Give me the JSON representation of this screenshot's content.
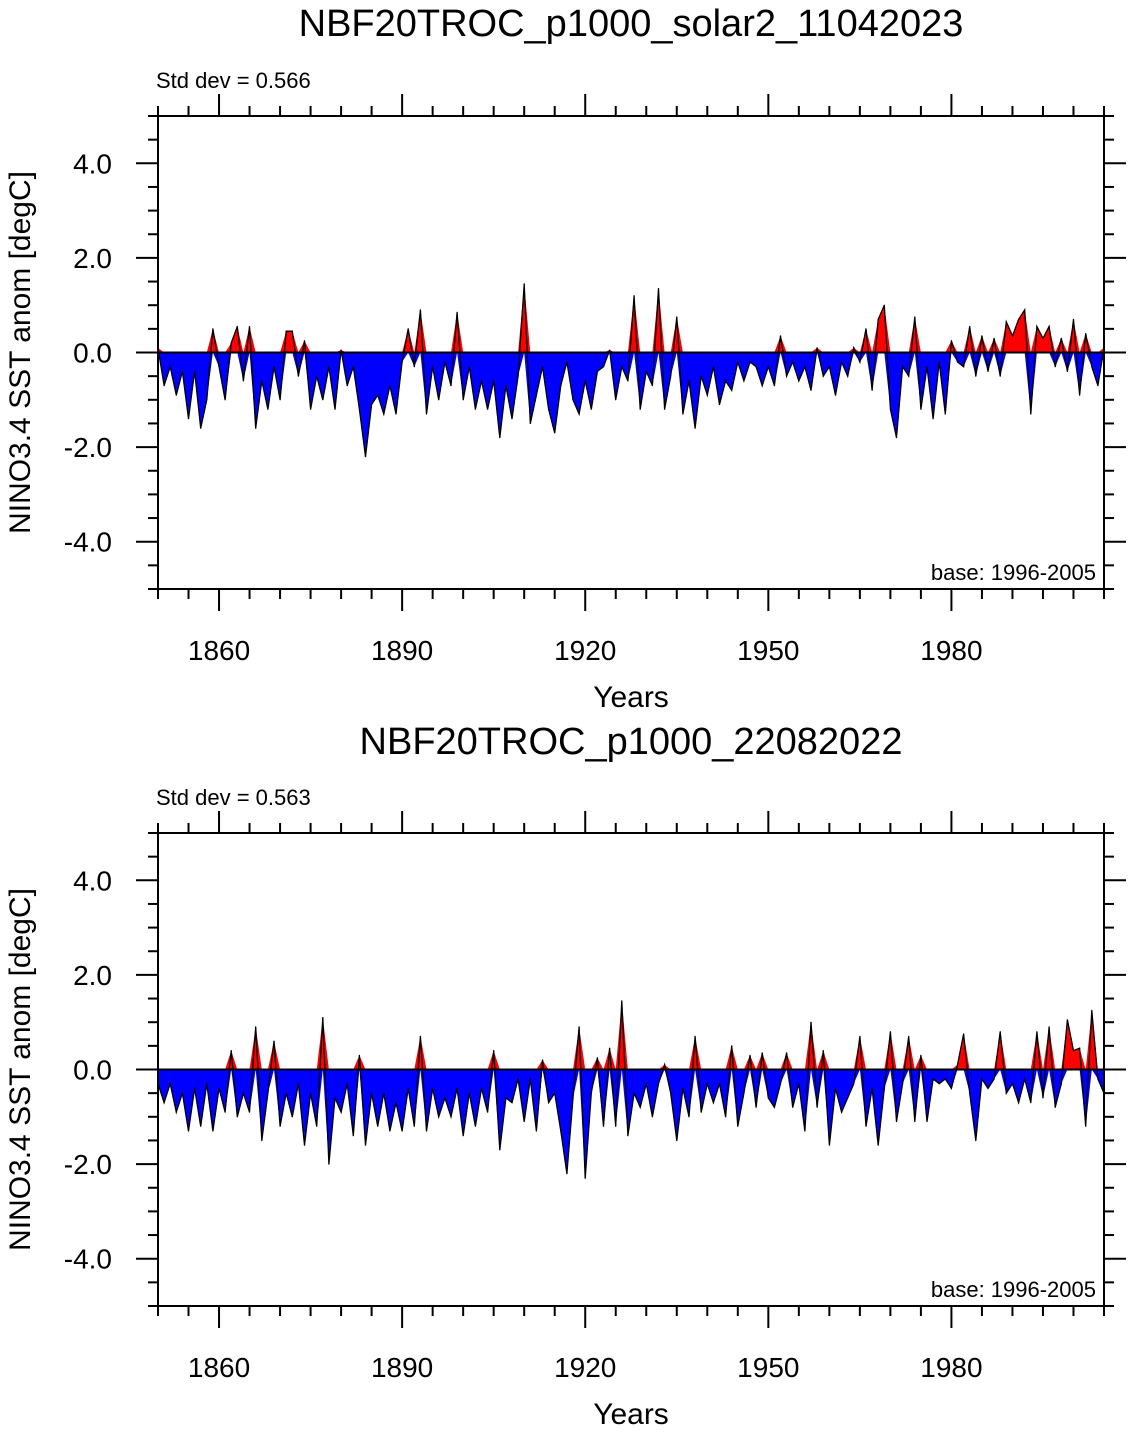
{
  "colors": {
    "positive": "#ff0000",
    "negative": "#0000ff",
    "line": "#000000",
    "background": "#ffffff"
  },
  "chart_data": [
    {
      "type": "area",
      "title": "NBF20TROC_p1000_solar2_11042023",
      "stddev_label": "Std dev = 0.566",
      "base_label": "base: 1996-2005",
      "xlabel": "Years",
      "ylabel": "NINO3.4 SST anom [degC]",
      "xlim": [
        1850,
        2005
      ],
      "ylim": [
        -5,
        5
      ],
      "x_ticks": [
        1860,
        1890,
        1920,
        1950,
        1980
      ],
      "x_tick_labels": [
        "1860",
        "1890",
        "1920",
        "1950",
        "1980"
      ],
      "y_ticks": [
        4,
        2,
        0,
        -2,
        -4
      ],
      "y_tick_labels": [
        "4.0",
        "2.0",
        "0.0",
        "-2.0",
        "-4.0"
      ],
      "baseline": 0,
      "points": [
        [
          1850,
          0.1
        ],
        [
          1851,
          -0.7
        ],
        [
          1852,
          -0.3
        ],
        [
          1853,
          -0.9
        ],
        [
          1854,
          -0.4
        ],
        [
          1855,
          -1.4
        ],
        [
          1856,
          -0.4
        ],
        [
          1857,
          -1.6
        ],
        [
          1858,
          -1.0
        ],
        [
          1859,
          0.5
        ],
        [
          1860,
          -0.3
        ],
        [
          1861,
          -1.0
        ],
        [
          1862,
          0.2
        ],
        [
          1863,
          0.55
        ],
        [
          1864,
          -0.6
        ],
        [
          1865,
          0.55
        ],
        [
          1866,
          -1.6
        ],
        [
          1867,
          -0.6
        ],
        [
          1868,
          -1.2
        ],
        [
          1869,
          -0.3
        ],
        [
          1870,
          -1.0
        ],
        [
          1871,
          0.45
        ],
        [
          1872,
          0.45
        ],
        [
          1873,
          -0.5
        ],
        [
          1874,
          0.25
        ],
        [
          1875,
          -1.2
        ],
        [
          1876,
          -0.5
        ],
        [
          1877,
          -1.0
        ],
        [
          1878,
          -0.3
        ],
        [
          1879,
          -1.2
        ],
        [
          1880,
          0.05
        ],
        [
          1881,
          -0.7
        ],
        [
          1882,
          -0.3
        ],
        [
          1883,
          -1.2
        ],
        [
          1884,
          -2.2
        ],
        [
          1885,
          -1.1
        ],
        [
          1886,
          -0.9
        ],
        [
          1887,
          -1.3
        ],
        [
          1888,
          -0.7
        ],
        [
          1889,
          -1.3
        ],
        [
          1890,
          -0.2
        ],
        [
          1891,
          0.5
        ],
        [
          1892,
          -0.3
        ],
        [
          1893,
          0.9
        ],
        [
          1894,
          -1.3
        ],
        [
          1895,
          -0.3
        ],
        [
          1896,
          -1.0
        ],
        [
          1897,
          -0.2
        ],
        [
          1898,
          -0.7
        ],
        [
          1899,
          0.85
        ],
        [
          1900,
          -1.0
        ],
        [
          1901,
          -0.3
        ],
        [
          1902,
          -1.2
        ],
        [
          1903,
          -0.6
        ],
        [
          1904,
          -1.2
        ],
        [
          1905,
          -0.6
        ],
        [
          1906,
          -1.8
        ],
        [
          1907,
          -0.7
        ],
        [
          1908,
          -1.4
        ],
        [
          1909,
          -0.5
        ],
        [
          1910,
          1.45
        ],
        [
          1911,
          -1.5
        ],
        [
          1912,
          -0.9
        ],
        [
          1913,
          -0.3
        ],
        [
          1914,
          -1.2
        ],
        [
          1915,
          -1.7
        ],
        [
          1916,
          -0.7
        ],
        [
          1917,
          -0.2
        ],
        [
          1918,
          -1.0
        ],
        [
          1919,
          -1.3
        ],
        [
          1920,
          -0.6
        ],
        [
          1921,
          -1.2
        ],
        [
          1922,
          -0.4
        ],
        [
          1923,
          -0.3
        ],
        [
          1924,
          0.05
        ],
        [
          1925,
          -1.0
        ],
        [
          1926,
          -0.3
        ],
        [
          1927,
          -0.6
        ],
        [
          1928,
          1.2
        ],
        [
          1929,
          -1.2
        ],
        [
          1930,
          -0.4
        ],
        [
          1931,
          -0.7
        ],
        [
          1932,
          1.35
        ],
        [
          1933,
          -1.2
        ],
        [
          1934,
          -0.5
        ],
        [
          1935,
          0.75
        ],
        [
          1936,
          -1.3
        ],
        [
          1937,
          -0.6
        ],
        [
          1938,
          -1.6
        ],
        [
          1939,
          -0.5
        ],
        [
          1940,
          -0.9
        ],
        [
          1941,
          -0.3
        ],
        [
          1942,
          -1.1
        ],
        [
          1943,
          -0.6
        ],
        [
          1944,
          -0.8
        ],
        [
          1945,
          -0.2
        ],
        [
          1946,
          -0.6
        ],
        [
          1947,
          -0.2
        ],
        [
          1948,
          -0.3
        ],
        [
          1949,
          -0.7
        ],
        [
          1950,
          -0.3
        ],
        [
          1951,
          -0.7
        ],
        [
          1952,
          0.35
        ],
        [
          1953,
          -0.5
        ],
        [
          1954,
          -0.2
        ],
        [
          1955,
          -0.6
        ],
        [
          1956,
          -0.3
        ],
        [
          1957,
          -0.8
        ],
        [
          1958,
          0.1
        ],
        [
          1959,
          -0.5
        ],
        [
          1960,
          -0.3
        ],
        [
          1961,
          -0.9
        ],
        [
          1962,
          -0.2
        ],
        [
          1963,
          -0.5
        ],
        [
          1964,
          0.1
        ],
        [
          1965,
          -0.2
        ],
        [
          1966,
          0.5
        ],
        [
          1967,
          -0.8
        ],
        [
          1968,
          0.7
        ],
        [
          1969,
          1.0
        ],
        [
          1970,
          -1.2
        ],
        [
          1971,
          -1.8
        ],
        [
          1972,
          -0.3
        ],
        [
          1973,
          -0.5
        ],
        [
          1974,
          0.75
        ],
        [
          1975,
          -1.2
        ],
        [
          1976,
          -0.3
        ],
        [
          1977,
          -1.4
        ],
        [
          1978,
          -0.2
        ],
        [
          1979,
          -1.3
        ],
        [
          1980,
          0.25
        ],
        [
          1981,
          -0.2
        ],
        [
          1982,
          -0.3
        ],
        [
          1983,
          0.55
        ],
        [
          1984,
          -0.5
        ],
        [
          1985,
          0.35
        ],
        [
          1986,
          -0.4
        ],
        [
          1987,
          0.3
        ],
        [
          1988,
          -0.5
        ],
        [
          1989,
          0.65
        ],
        [
          1990,
          0.35
        ],
        [
          1991,
          0.7
        ],
        [
          1992,
          0.9
        ],
        [
          1993,
          -1.3
        ],
        [
          1994,
          0.55
        ],
        [
          1995,
          0.3
        ],
        [
          1996,
          0.55
        ],
        [
          1997,
          -0.3
        ],
        [
          1998,
          0.3
        ],
        [
          1999,
          -0.4
        ],
        [
          2000,
          0.7
        ],
        [
          2001,
          -0.9
        ],
        [
          2002,
          0.4
        ],
        [
          2003,
          -0.3
        ],
        [
          2004,
          -0.7
        ],
        [
          2005,
          0.1
        ]
      ]
    },
    {
      "type": "area",
      "title": "NBF20TROC_p1000_22082022",
      "stddev_label": "Std dev = 0.563",
      "base_label": "base: 1996-2005",
      "xlabel": "Years",
      "ylabel": "NINO3.4 SST anom [degC]",
      "xlim": [
        1850,
        2005
      ],
      "ylim": [
        -5,
        5
      ],
      "x_ticks": [
        1860,
        1890,
        1920,
        1950,
        1980
      ],
      "x_tick_labels": [
        "1860",
        "1890",
        "1920",
        "1950",
        "1980"
      ],
      "y_ticks": [
        4,
        2,
        0,
        -2,
        -4
      ],
      "y_tick_labels": [
        "4.0",
        "2.0",
        "0.0",
        "-2.0",
        "-4.0"
      ],
      "baseline": 0,
      "points": [
        [
          1850,
          -0.3
        ],
        [
          1851,
          -0.7
        ],
        [
          1852,
          -0.3
        ],
        [
          1853,
          -0.9
        ],
        [
          1854,
          -0.5
        ],
        [
          1855,
          -1.3
        ],
        [
          1856,
          -0.4
        ],
        [
          1857,
          -1.2
        ],
        [
          1858,
          -0.3
        ],
        [
          1859,
          -1.3
        ],
        [
          1860,
          -0.4
        ],
        [
          1861,
          -0.9
        ],
        [
          1862,
          0.4
        ],
        [
          1863,
          -1.0
        ],
        [
          1864,
          -0.5
        ],
        [
          1865,
          -0.9
        ],
        [
          1866,
          0.9
        ],
        [
          1867,
          -1.5
        ],
        [
          1868,
          -0.5
        ],
        [
          1869,
          0.6
        ],
        [
          1870,
          -1.2
        ],
        [
          1871,
          -0.5
        ],
        [
          1872,
          -1.0
        ],
        [
          1873,
          -0.3
        ],
        [
          1874,
          -1.6
        ],
        [
          1875,
          -0.5
        ],
        [
          1876,
          -1.2
        ],
        [
          1877,
          1.1
        ],
        [
          1878,
          -2.0
        ],
        [
          1879,
          -0.6
        ],
        [
          1880,
          -0.9
        ],
        [
          1881,
          -0.3
        ],
        [
          1882,
          -1.4
        ],
        [
          1883,
          0.3
        ],
        [
          1884,
          -1.6
        ],
        [
          1885,
          -0.5
        ],
        [
          1886,
          -1.2
        ],
        [
          1887,
          -0.5
        ],
        [
          1888,
          -1.3
        ],
        [
          1889,
          -0.7
        ],
        [
          1890,
          -1.3
        ],
        [
          1891,
          -0.4
        ],
        [
          1892,
          -1.2
        ],
        [
          1893,
          0.7
        ],
        [
          1894,
          -1.3
        ],
        [
          1895,
          -0.4
        ],
        [
          1896,
          -1.0
        ],
        [
          1897,
          -0.6
        ],
        [
          1898,
          -1.0
        ],
        [
          1899,
          -0.4
        ],
        [
          1900,
          -1.4
        ],
        [
          1901,
          -0.5
        ],
        [
          1902,
          -1.2
        ],
        [
          1903,
          -0.4
        ],
        [
          1904,
          -0.9
        ],
        [
          1905,
          0.4
        ],
        [
          1906,
          -1.7
        ],
        [
          1907,
          -0.6
        ],
        [
          1908,
          -0.7
        ],
        [
          1909,
          -0.2
        ],
        [
          1910,
          -1.1
        ],
        [
          1911,
          -0.2
        ],
        [
          1912,
          -1.3
        ],
        [
          1913,
          0.2
        ],
        [
          1914,
          -0.7
        ],
        [
          1915,
          -0.5
        ],
        [
          1916,
          -1.3
        ],
        [
          1917,
          -2.2
        ],
        [
          1918,
          -0.6
        ],
        [
          1919,
          0.9
        ],
        [
          1920,
          -2.3
        ],
        [
          1921,
          -0.5
        ],
        [
          1922,
          0.25
        ],
        [
          1923,
          -1.2
        ],
        [
          1924,
          0.45
        ],
        [
          1925,
          -1.2
        ],
        [
          1926,
          1.45
        ],
        [
          1927,
          -1.4
        ],
        [
          1928,
          -0.5
        ],
        [
          1929,
          -0.8
        ],
        [
          1930,
          -0.3
        ],
        [
          1931,
          -1.0
        ],
        [
          1932,
          -0.3
        ],
        [
          1933,
          0.1
        ],
        [
          1934,
          -0.5
        ],
        [
          1935,
          -1.5
        ],
        [
          1936,
          -0.4
        ],
        [
          1937,
          -1.0
        ],
        [
          1938,
          0.7
        ],
        [
          1939,
          -0.9
        ],
        [
          1940,
          -0.3
        ],
        [
          1941,
          -0.7
        ],
        [
          1942,
          -0.3
        ],
        [
          1943,
          -1.0
        ],
        [
          1944,
          0.5
        ],
        [
          1945,
          -1.2
        ],
        [
          1946,
          -0.5
        ],
        [
          1947,
          0.3
        ],
        [
          1948,
          -0.8
        ],
        [
          1949,
          0.35
        ],
        [
          1950,
          -0.6
        ],
        [
          1951,
          -0.8
        ],
        [
          1952,
          -0.3
        ],
        [
          1953,
          0.35
        ],
        [
          1954,
          -0.8
        ],
        [
          1955,
          -0.3
        ],
        [
          1956,
          -1.3
        ],
        [
          1957,
          1.0
        ],
        [
          1958,
          -0.8
        ],
        [
          1959,
          0.4
        ],
        [
          1960,
          -1.6
        ],
        [
          1961,
          -0.4
        ],
        [
          1962,
          -0.9
        ],
        [
          1963,
          -0.6
        ],
        [
          1964,
          -0.3
        ],
        [
          1965,
          0.7
        ],
        [
          1966,
          -1.2
        ],
        [
          1967,
          -0.4
        ],
        [
          1968,
          -1.6
        ],
        [
          1969,
          -0.4
        ],
        [
          1970,
          0.8
        ],
        [
          1971,
          -1.1
        ],
        [
          1972,
          -0.3
        ],
        [
          1973,
          0.7
        ],
        [
          1974,
          -1.1
        ],
        [
          1975,
          0.3
        ],
        [
          1976,
          -1.1
        ],
        [
          1977,
          -0.2
        ],
        [
          1978,
          -0.3
        ],
        [
          1979,
          -0.2
        ],
        [
          1980,
          -0.4
        ],
        [
          1981,
          0.1
        ],
        [
          1982,
          0.75
        ],
        [
          1983,
          -0.5
        ],
        [
          1984,
          -1.5
        ],
        [
          1985,
          -0.2
        ],
        [
          1986,
          -0.4
        ],
        [
          1987,
          -0.2
        ],
        [
          1988,
          0.8
        ],
        [
          1989,
          -0.5
        ],
        [
          1990,
          -0.3
        ],
        [
          1991,
          -0.7
        ],
        [
          1992,
          -0.2
        ],
        [
          1993,
          -0.7
        ],
        [
          1994,
          0.8
        ],
        [
          1995,
          -0.6
        ],
        [
          1996,
          0.9
        ],
        [
          1997,
          -0.8
        ],
        [
          1998,
          -0.3
        ],
        [
          1999,
          1.05
        ],
        [
          2000,
          0.4
        ],
        [
          2001,
          0.45
        ],
        [
          2002,
          -1.2
        ],
        [
          2003,
          1.25
        ],
        [
          2004,
          -0.2
        ],
        [
          2005,
          -0.5
        ]
      ]
    }
  ]
}
